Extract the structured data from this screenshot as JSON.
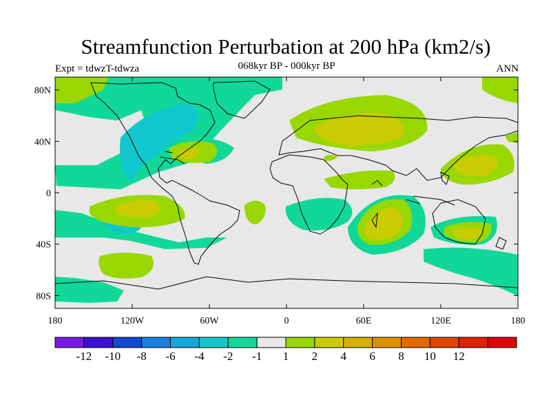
{
  "header": {
    "title": "Streamfunction Perturbation at 200 hPa (km2/s)",
    "subtitle": "068kyr BP - 000kyr BP",
    "left": "Expt = tdwzT-tdwza",
    "right": "ANN"
  },
  "map": {
    "lat_ticks": [
      {
        "value": 80,
        "label": "80N"
      },
      {
        "value": 40,
        "label": "40N"
      },
      {
        "value": 0,
        "label": "0"
      },
      {
        "value": -40,
        "label": "40S"
      },
      {
        "value": -80,
        "label": "80S"
      }
    ],
    "lon_ticks": [
      {
        "value": -180,
        "label": "180"
      },
      {
        "value": -120,
        "label": "120W"
      },
      {
        "value": -60,
        "label": "60W"
      },
      {
        "value": 0,
        "label": "0"
      },
      {
        "value": 60,
        "label": "60E"
      },
      {
        "value": 120,
        "label": "120E"
      },
      {
        "value": 180,
        "label": "180"
      }
    ],
    "background_color": "#e8e8e8"
  },
  "colorbar": {
    "colors": [
      "#7a17e6",
      "#3a10d6",
      "#1048d0",
      "#1a7ee0",
      "#14a8de",
      "#10c8cc",
      "#10d898",
      "#e8e8e8",
      "#98d800",
      "#c8cc00",
      "#d8b000",
      "#e09000",
      "#e06a00",
      "#e04400",
      "#e02000",
      "#e00000"
    ],
    "labels": [
      "-12",
      "-10",
      "-8",
      "-6",
      "-4",
      "-2",
      "-1",
      "1",
      "2",
      "4",
      "6",
      "8",
      "10",
      "12"
    ]
  }
}
